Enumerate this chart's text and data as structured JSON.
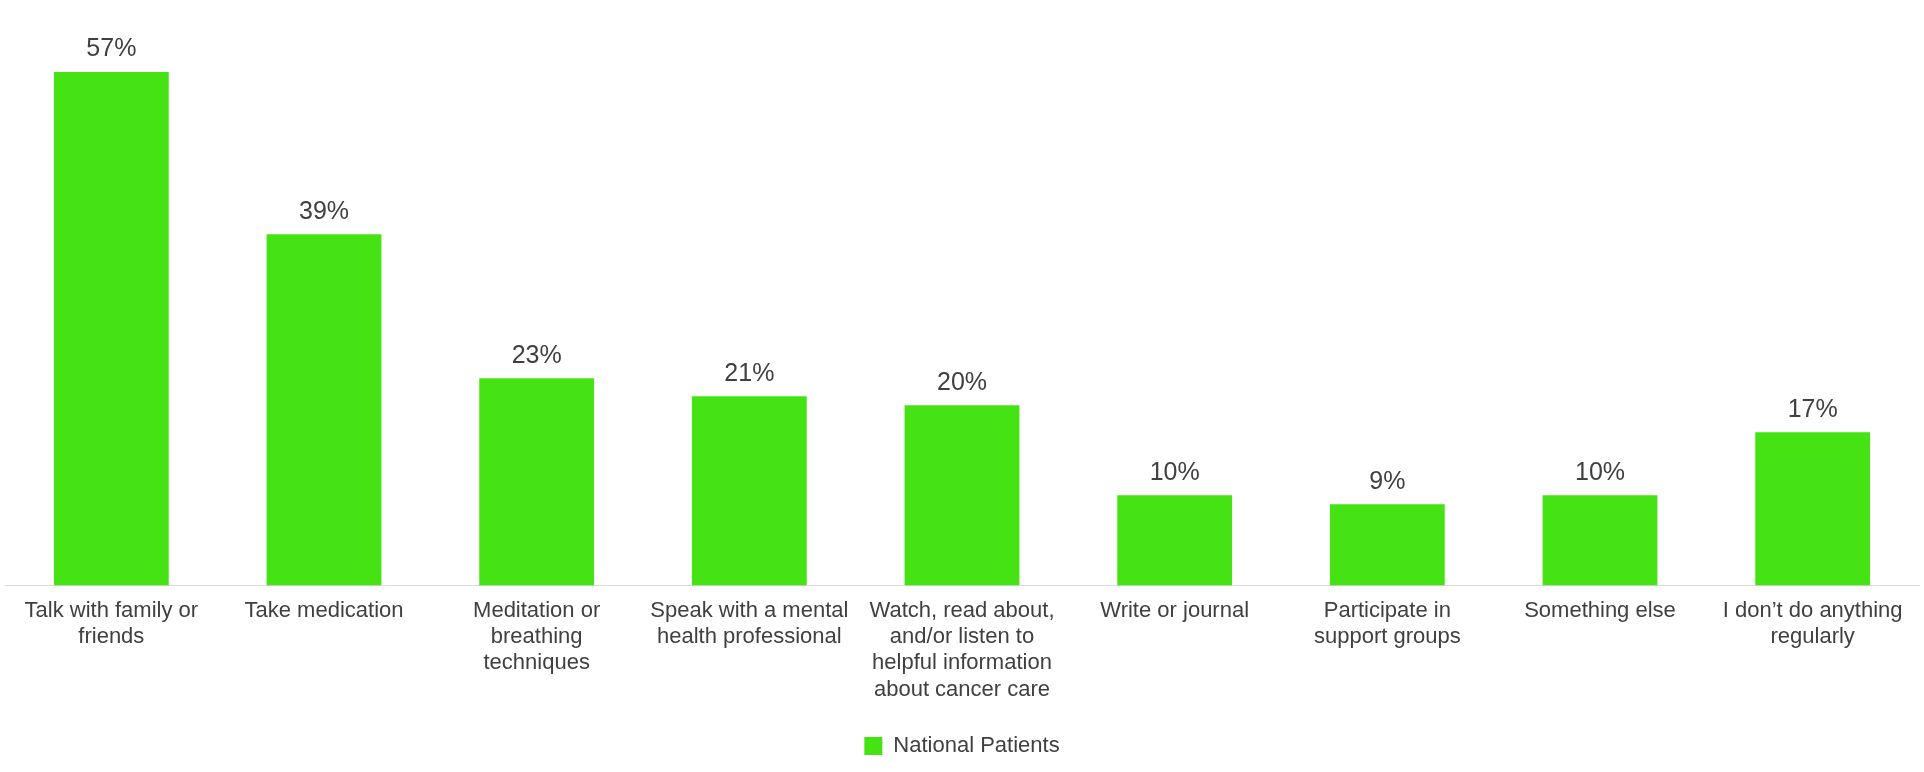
{
  "chart_data": {
    "type": "bar",
    "categories": [
      "Talk with family or friends",
      "Take medication",
      "Meditation or breathing techniques",
      "Speak with a mental health professional",
      "Watch, read about, and/or listen to helpful information about cancer care",
      "Write or journal",
      "Participate in support groups",
      "Something else",
      "I don’t do anything regularly"
    ],
    "series": [
      {
        "name": "National Patients",
        "color": "#46e314",
        "values": [
          57,
          39,
          23,
          21,
          20,
          10,
          9,
          10,
          17
        ],
        "value_labels": [
          "57%",
          "39%",
          "23%",
          "21%",
          "20%",
          "10%",
          "9%",
          "10%",
          "17%"
        ]
      }
    ],
    "data_labels": true,
    "legend": "bottom",
    "grid": false
  }
}
